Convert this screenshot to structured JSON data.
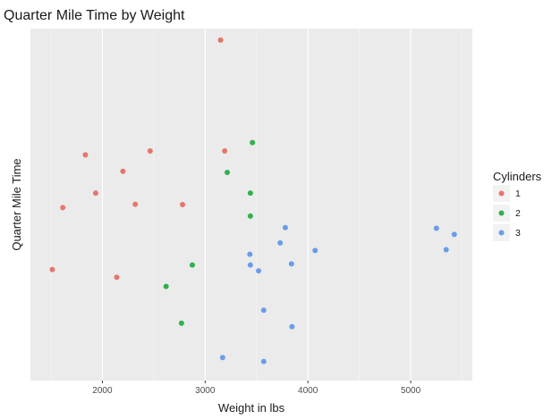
{
  "chart_data": {
    "type": "scatter",
    "title": "Quarter Mile Time by Weight",
    "xlabel": "Weight in lbs",
    "ylabel": "Quarter Mile Time",
    "xlim": [
      1300,
      5600
    ],
    "ylim": [
      14.0,
      23.2
    ],
    "x_ticks": [
      2000,
      3000,
      4000,
      5000
    ],
    "show_y_ticks": false,
    "grid": true,
    "background": "#ebebeb",
    "legend": {
      "title": "Cylinders",
      "position": "right"
    },
    "series": [
      {
        "name": "1",
        "color": "#e6756d",
        "points": [
          [
            3150,
            22.9
          ],
          [
            1835,
            19.9
          ],
          [
            2465,
            20.0
          ],
          [
            3190,
            20.0
          ],
          [
            2200,
            19.47
          ],
          [
            1935,
            18.9
          ],
          [
            2320,
            18.61
          ],
          [
            2780,
            18.6
          ],
          [
            1615,
            18.52
          ],
          [
            1513,
            16.9
          ],
          [
            2140,
            16.7
          ]
        ]
      },
      {
        "name": "2",
        "color": "#2fb14d",
        "points": [
          [
            3460,
            20.22
          ],
          [
            3215,
            19.44
          ],
          [
            3440,
            18.9
          ],
          [
            3440,
            18.3
          ],
          [
            2875,
            17.02
          ],
          [
            2620,
            16.46
          ],
          [
            2770,
            15.5
          ]
        ]
      },
      {
        "name": "3",
        "color": "#6a9de8",
        "points": [
          [
            3780,
            18.0
          ],
          [
            5250,
            17.98
          ],
          [
            5424,
            17.82
          ],
          [
            3730,
            17.6
          ],
          [
            4070,
            17.4
          ],
          [
            5345,
            17.42
          ],
          [
            3435,
            17.3
          ],
          [
            3840,
            17.05
          ],
          [
            3440,
            17.02
          ],
          [
            3520,
            16.87
          ],
          [
            3570,
            15.84
          ],
          [
            3845,
            15.41
          ],
          [
            3570,
            14.5
          ],
          [
            3170,
            14.6
          ]
        ]
      }
    ]
  }
}
